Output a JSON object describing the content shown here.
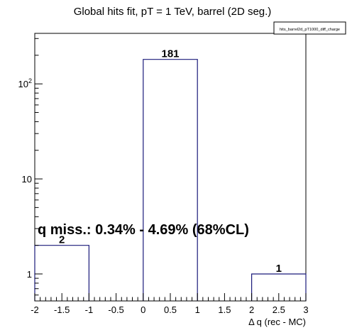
{
  "chart_data": {
    "type": "bar",
    "title": "Global hits fit, pT = 1 TeV, barrel (2D seg.)",
    "legend_label": "hits_barrel2d_pT1000_diff_charge",
    "xlabel": "Δ q (rec - MC)",
    "ylabel": "",
    "x_ticks": [
      "-2",
      "-1.5",
      "-1",
      "-0.5",
      "0",
      "0.5",
      "1",
      "1.5",
      "2",
      "2.5",
      "3"
    ],
    "y_scale": "log",
    "y_ticks": [
      {
        "value": 1,
        "label": "1"
      },
      {
        "value": 10,
        "label": "10"
      },
      {
        "value": 100,
        "label": "10",
        "sup": "2"
      }
    ],
    "xlim": [
      -2,
      3
    ],
    "ylim": [
      0.52,
      340
    ],
    "bins": [
      {
        "x0": -2,
        "x1": -1,
        "value": 2,
        "label": "2"
      },
      {
        "x0": 0,
        "x1": 1,
        "value": 181,
        "label": "181"
      },
      {
        "x0": 2,
        "x1": 3,
        "value": 1,
        "label": "1"
      }
    ],
    "annotation": "q miss.: 0.34% - 4.69% (68%CL)",
    "colors": {
      "histogram": "#1a1a7a",
      "axis": "#000000"
    }
  }
}
